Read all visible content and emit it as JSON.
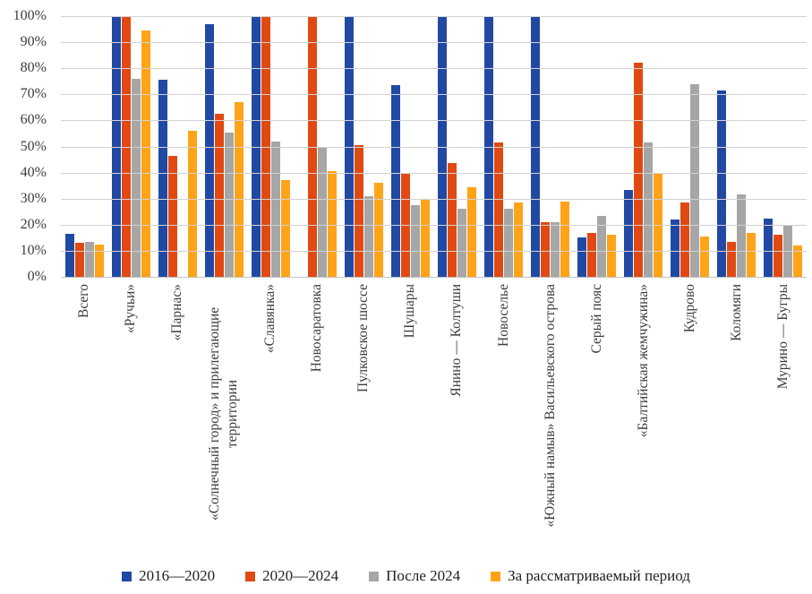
{
  "chart_data": {
    "type": "bar",
    "title": "",
    "xlabel": "",
    "ylabel": "",
    "ylim": [
      0,
      100
    ],
    "grid": "horizontal",
    "legend_position": "bottom",
    "y_ticks": [
      "100%",
      "90%",
      "80%",
      "70%",
      "60%",
      "50%",
      "40%",
      "30%",
      "20%",
      "10%",
      "0%"
    ],
    "categories": [
      "Всего",
      "«Ручьи»",
      "«Парнас»",
      "«Солнечный город» и прилегающие территории",
      "«Славянка»",
      "Новосаратовка",
      "Пулковское шоссе",
      "Шушары",
      "Янино — Колтуши",
      "Новоселье",
      "«Южный намыв» Васильевского острова",
      "Серый пояс",
      "«Балтийская жемчужина»",
      "Кудрово",
      "Коломяги",
      "Мурино — Бугры"
    ],
    "series": [
      {
        "name": "2016—2020",
        "color": "#2149a4",
        "values": [
          16.5,
          100,
          75.5,
          97,
          100,
          0,
          100,
          73.5,
          100,
          100,
          100,
          15,
          33.5,
          22,
          71.5,
          22.5
        ]
      },
      {
        "name": "2020—2024",
        "color": "#e04a12",
        "values": [
          13,
          100,
          46.5,
          62.5,
          100,
          100,
          50.5,
          39.5,
          43.5,
          51.5,
          21,
          17,
          82,
          28.5,
          13.5,
          16
        ]
      },
      {
        "name": "После 2024",
        "color": "#a6a6a6",
        "values": [
          13.5,
          76,
          0,
          55.5,
          52,
          50,
          31,
          27.5,
          26,
          26,
          21,
          23.5,
          51.5,
          74,
          31.5,
          20
        ]
      },
      {
        "name": "За рассматриваемый период",
        "color": "#ffa319",
        "values": [
          12.5,
          94.5,
          56,
          67,
          37,
          40.5,
          36,
          30,
          34.5,
          28.5,
          29,
          16,
          40,
          15.5,
          17,
          12
        ]
      }
    ],
    "colors": {
      "gridline": "#d2d2d2",
      "axis_text": "#3d3d3d",
      "legend_text": "#212121"
    }
  }
}
